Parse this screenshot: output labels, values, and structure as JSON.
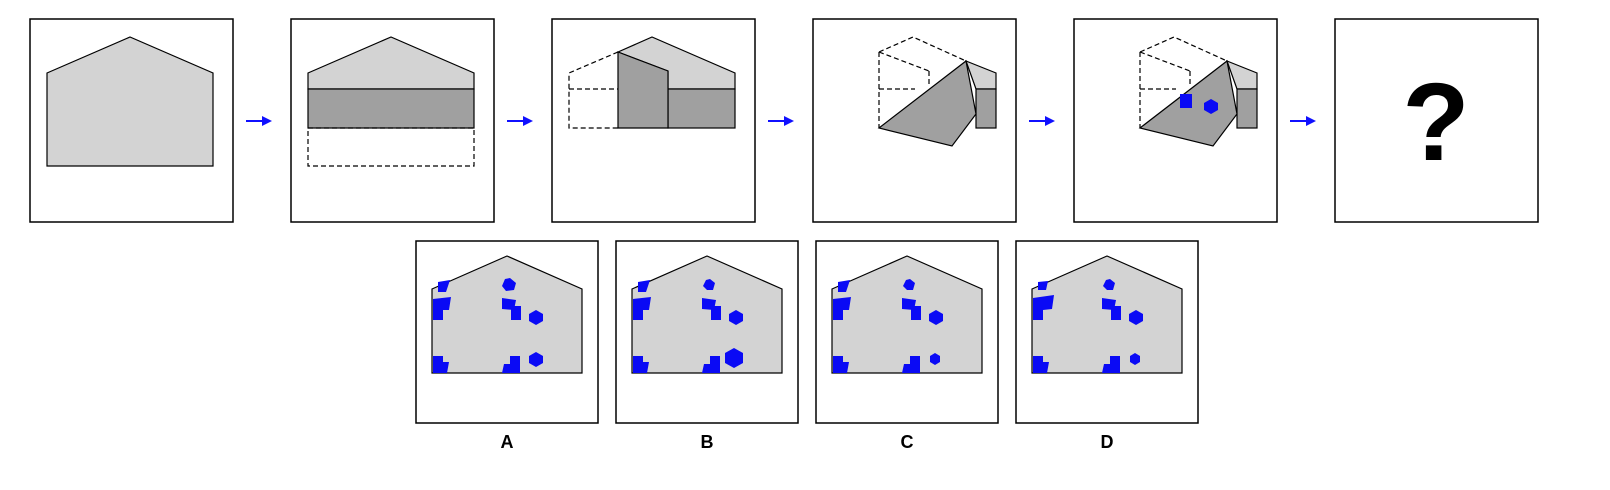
{
  "puzzle": {
    "question_mark": "?",
    "options": [
      {
        "label": "A"
      },
      {
        "label": "B"
      },
      {
        "label": "C"
      },
      {
        "label": "D"
      }
    ]
  },
  "colors": {
    "paper": "#d3d3d3",
    "folded_paper": "#a0a0a0",
    "hole": "#0a0af5",
    "arrow": "#1010ff"
  }
}
